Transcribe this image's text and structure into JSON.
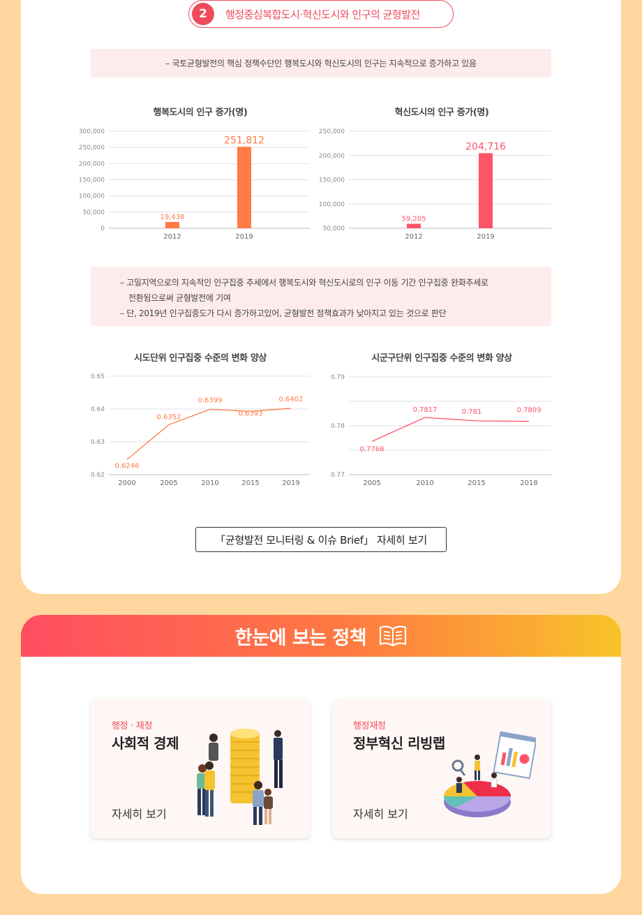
{
  "section": {
    "number": "2",
    "title": "행정중심복합도시·혁신도시와 인구의 균형발전"
  },
  "summary_1": "– 국토균형발전의 핵심 정책수단인 행복도시와 혁신도시의 인구는 지속적으로 증가하고 있음",
  "summary_2": [
    "– 고밀지역으로의 지속적인 인구집중 추세에서 행복도시와 혁신도시로의 인구 이동 기간 인구집중 완화추세로",
    "전환됨으로써 균형발전에 기여",
    "– 단, 2019년 인구집중도가 다시 증가하고있어, 균형발전 정책효과가 낮아지고 있는 것으로 판단"
  ],
  "chart_data": [
    {
      "type": "bar",
      "title": "행복도시의 인구 증가(명)",
      "categories": [
        "2012",
        "2019"
      ],
      "values": [
        19438,
        251812
      ],
      "value_labels": [
        "19,438",
        "251,812"
      ],
      "ylim": [
        0,
        300000
      ],
      "yticks": [
        "300,000",
        "250,000",
        "200,000",
        "150,000",
        "100,000",
        "50,000",
        "0"
      ],
      "color": "#ff7a45"
    },
    {
      "type": "bar",
      "title": "혁신도시의 인구 증가(명)",
      "categories": [
        "2012",
        "2019"
      ],
      "values": [
        59205,
        204716
      ],
      "value_labels": [
        "59,205",
        "204,716"
      ],
      "ylim": [
        50000,
        250000
      ],
      "yticks": [
        "250,000",
        "200,000",
        "150,000",
        "100,000",
        "50,000"
      ],
      "color": "#ff5468"
    },
    {
      "type": "line",
      "title": "시도단위 인구집중 수준의 변화 양상",
      "x": [
        "2000",
        "2005",
        "2010",
        "2015",
        "2019"
      ],
      "values": [
        0.6246,
        0.6352,
        0.6399,
        0.6393,
        0.6402
      ],
      "value_labels": [
        "0.6246",
        "0.6352",
        "0.6399",
        "0.6393",
        "0.6402"
      ],
      "ylim": [
        0.62,
        0.65
      ],
      "yticks": [
        "0.65",
        "0.64",
        "0.63",
        "0.62"
      ],
      "color": "#ff7a45"
    },
    {
      "type": "line",
      "title": "시군구단위 인구집중 수준의 변화 양상",
      "x": [
        "2005",
        "2010",
        "2015",
        "2018"
      ],
      "values": [
        0.7768,
        0.7817,
        0.781,
        0.7809
      ],
      "value_labels": [
        "0.7768",
        "0.7817",
        "0.781",
        "0.7809"
      ],
      "ylim": [
        0.77,
        0.79
      ],
      "yticks": [
        "0.79",
        "0.78",
        "0.77"
      ],
      "color": "#ff5468"
    }
  ],
  "brief_button": "「균형발전 모니터링 & 이슈 Brief」 자세히 보기",
  "policy": {
    "banner_title": "한눈에 보는 정책",
    "cards": [
      {
        "category": "행정 · 재정",
        "title": "사회적 경제",
        "more": "자세히 보기"
      },
      {
        "category": "행정재정",
        "title": "정부혁신 리빙랩",
        "more": "자세히 보기"
      }
    ]
  },
  "colors": {
    "accent": "#f04a5d",
    "bar1": "#ff7a45",
    "bar2": "#ff5468",
    "background": "#ffd79e"
  }
}
